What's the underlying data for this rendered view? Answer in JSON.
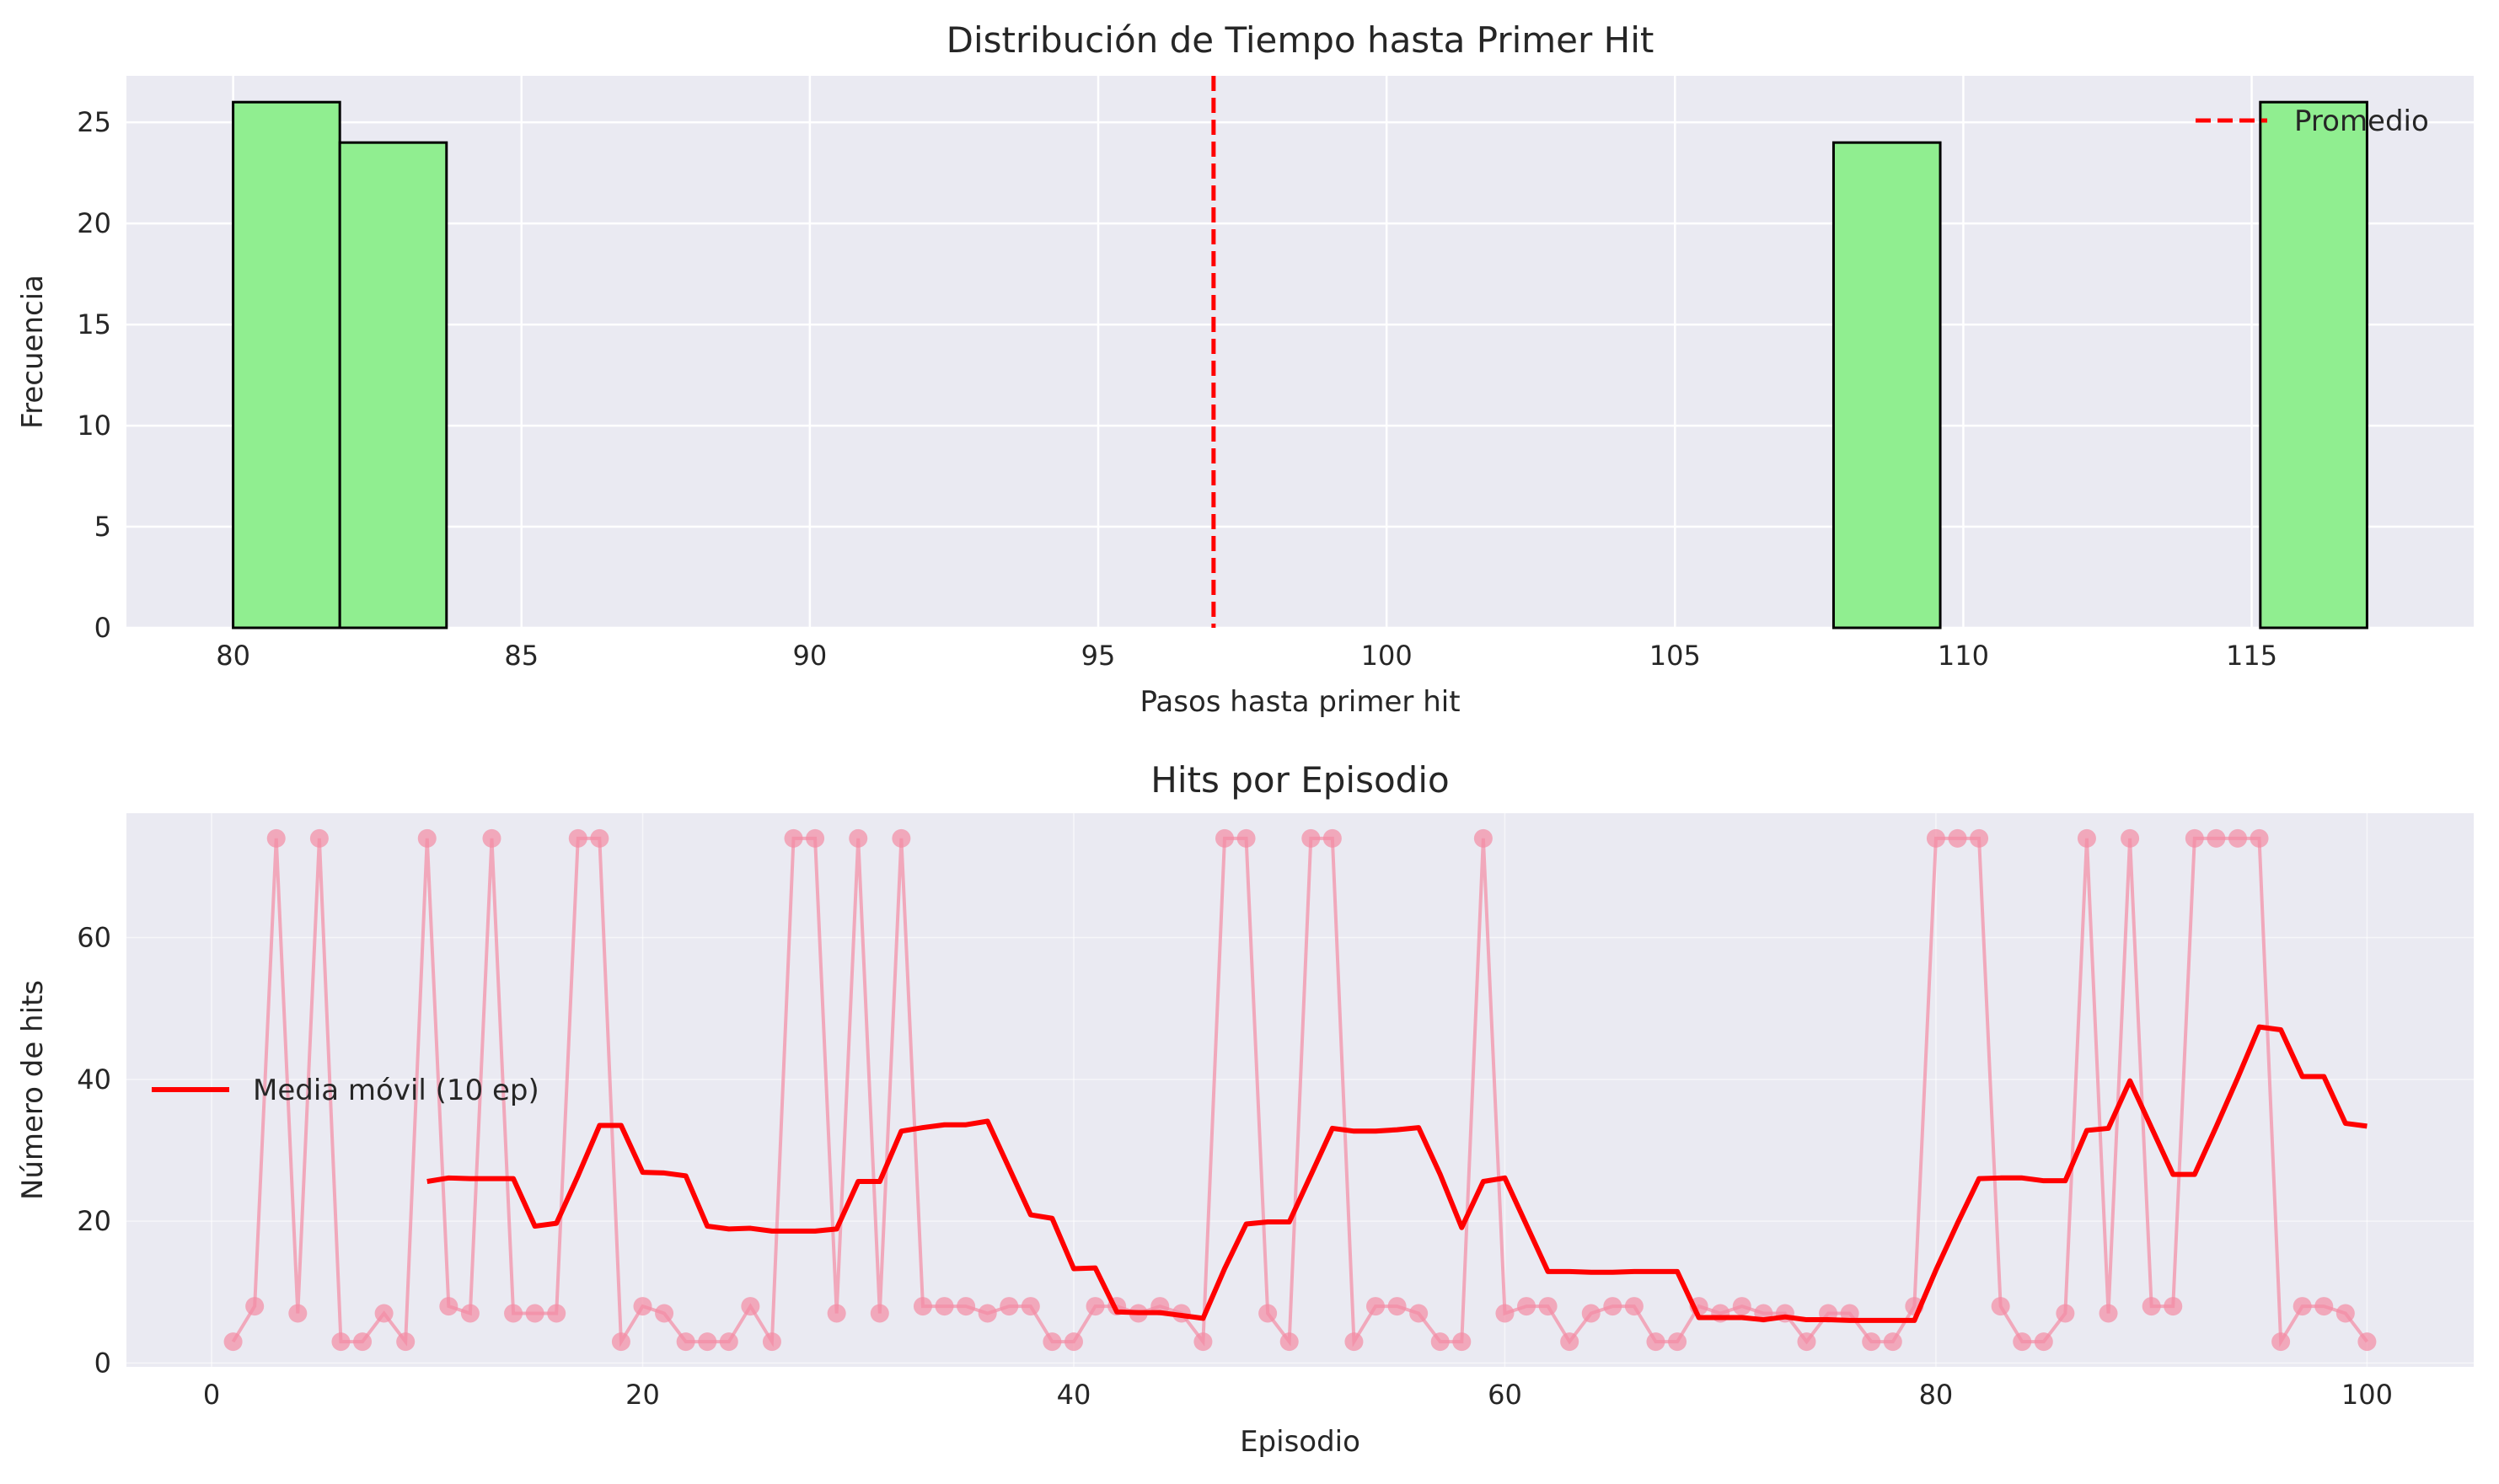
{
  "chart_data": [
    {
      "type": "bar",
      "title": "Distribución de Tiempo hasta Primer Hit",
      "xlabel": "Pasos hasta primer hit",
      "ylabel": "Frecuencia",
      "xlim": [
        78.15,
        118.85
      ],
      "ylim": [
        0,
        27.3
      ],
      "xticks": [
        80,
        85,
        90,
        95,
        100,
        105,
        110,
        115
      ],
      "yticks": [
        0,
        5,
        10,
        15,
        20,
        25
      ],
      "bins": [
        {
          "x0": 80.0,
          "x1": 81.85,
          "count": 26
        },
        {
          "x0": 81.85,
          "x1": 83.7,
          "count": 24
        },
        {
          "x0": 107.75,
          "x1": 109.6,
          "count": 24
        },
        {
          "x0": 115.15,
          "x1": 117.0,
          "count": 26
        }
      ],
      "bar_color": "#90ee90",
      "edge_color": "#000000",
      "mean_line": {
        "x": 97.0,
        "color": "#ff0000",
        "label": "Promedio"
      },
      "grid": true,
      "legend": "upper right"
    },
    {
      "type": "line",
      "title": "Hits por Episodio",
      "xlabel": "Episodio",
      "ylabel": "Número de hits",
      "xlim": [
        -3.95,
        104.95
      ],
      "ylim": [
        -0.55,
        77.55
      ],
      "xticks": [
        0,
        20,
        40,
        60,
        80,
        100
      ],
      "yticks": [
        0,
        20,
        40,
        60
      ],
      "grid": true,
      "legend": "center left",
      "series": [
        {
          "name": "",
          "color": "#f48ba4",
          "marker": "circle",
          "x": [
            1,
            2,
            3,
            4,
            5,
            6,
            7,
            8,
            9,
            10,
            11,
            12,
            13,
            14,
            15,
            16,
            17,
            18,
            19,
            20,
            21,
            22,
            23,
            24,
            25,
            26,
            27,
            28,
            29,
            30,
            31,
            32,
            33,
            34,
            35,
            36,
            37,
            38,
            39,
            40,
            41,
            42,
            43,
            44,
            45,
            46,
            47,
            48,
            49,
            50,
            51,
            52,
            53,
            54,
            55,
            56,
            57,
            58,
            59,
            60,
            61,
            62,
            63,
            64,
            65,
            66,
            67,
            68,
            69,
            70,
            71,
            72,
            73,
            74,
            75,
            76,
            77,
            78,
            79,
            80,
            81,
            82,
            83,
            84,
            85,
            86,
            87,
            88,
            89,
            90,
            91,
            92,
            93,
            94,
            95,
            96,
            97,
            98,
            99,
            100
          ],
          "values": [
            3,
            8,
            74,
            7,
            74,
            3,
            3,
            7,
            3,
            74,
            8,
            7,
            74,
            7,
            7,
            7,
            74,
            74,
            3,
            8,
            7,
            3,
            3,
            3,
            8,
            3,
            74,
            74,
            7,
            74,
            7,
            74,
            8,
            8,
            8,
            7,
            8,
            8,
            3,
            3,
            8,
            8,
            7,
            8,
            7,
            3,
            74,
            74,
            7,
            3,
            74,
            74,
            3,
            8,
            8,
            7,
            3,
            3,
            74,
            7,
            8,
            8,
            3,
            7,
            8,
            8,
            3,
            3,
            8,
            7,
            8,
            7,
            7,
            3,
            7,
            7,
            3,
            3,
            8,
            74,
            74,
            74,
            8,
            3,
            3,
            7,
            74,
            7,
            74,
            8,
            8,
            74,
            74,
            74,
            74,
            3,
            8,
            8,
            7,
            3
          ]
        },
        {
          "name": "Media móvil (10 ep)",
          "color": "#ff0000",
          "x": [
            10,
            11,
            12,
            13,
            14,
            15,
            16,
            17,
            18,
            19,
            20,
            21,
            22,
            23,
            24,
            25,
            26,
            27,
            28,
            29,
            30,
            31,
            32,
            33,
            34,
            35,
            36,
            37,
            38,
            39,
            40,
            41,
            42,
            43,
            44,
            45,
            46,
            47,
            48,
            49,
            50,
            51,
            52,
            53,
            54,
            55,
            56,
            57,
            58,
            59,
            60,
            61,
            62,
            63,
            64,
            65,
            66,
            67,
            68,
            69,
            70,
            71,
            72,
            73,
            74,
            75,
            76,
            77,
            78,
            79,
            80,
            81,
            82,
            83,
            84,
            85,
            86,
            87,
            88,
            89,
            90,
            91,
            92,
            93,
            94,
            95,
            96,
            97,
            98,
            99,
            100
          ],
          "values": [
            25.6,
            26.1,
            26.0,
            26.0,
            26.0,
            19.3,
            19.7,
            26.4,
            33.5,
            33.5,
            26.9,
            26.8,
            26.4,
            19.3,
            18.9,
            19.0,
            18.6,
            18.6,
            18.6,
            18.9,
            25.6,
            25.6,
            32.7,
            33.2,
            33.6,
            33.6,
            34.1,
            27.5,
            20.9,
            20.4,
            13.3,
            13.4,
            7.2,
            7.1,
            7.1,
            6.7,
            6.3,
            13.3,
            19.6,
            19.9,
            19.9,
            26.5,
            33.1,
            32.7,
            32.7,
            32.9,
            33.2,
            26.6,
            19.1,
            25.6,
            26.1,
            19.5,
            12.9,
            12.9,
            12.8,
            12.8,
            12.9,
            12.9,
            12.9,
            6.4,
            6.4,
            6.4,
            6.1,
            6.5,
            6.1,
            6.1,
            6.0,
            6.0,
            6.0,
            6.0,
            13.1,
            19.7,
            26.0,
            26.1,
            26.1,
            25.7,
            25.7,
            32.8,
            33.1,
            39.8,
            33.2,
            26.6,
            26.6,
            33.3,
            40.2,
            47.4,
            47.0,
            40.4,
            40.4,
            33.8,
            33.4
          ]
        }
      ]
    }
  ]
}
